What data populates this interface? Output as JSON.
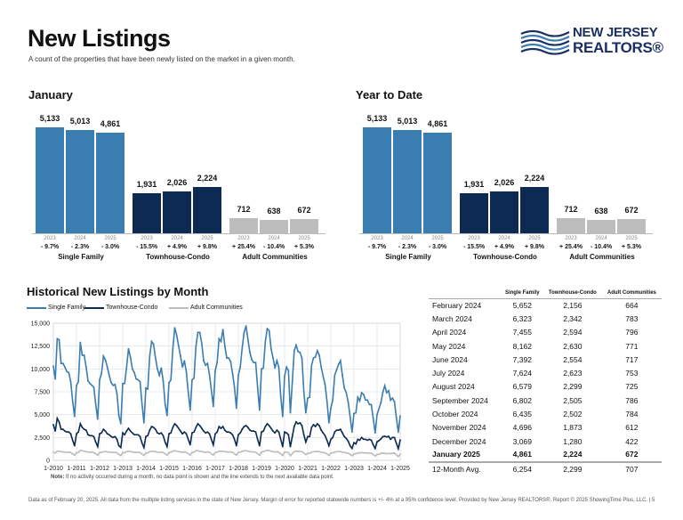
{
  "header": {
    "title": "New Listings",
    "subtitle": "A count of the properties that have been newly listed on the market in a given month.",
    "logo_line1": "NEW JERSEY",
    "logo_line2": "REALTORS®"
  },
  "colors": {
    "single_family": "#3a7db1",
    "townhouse_condo": "#0d2a52",
    "adult_communities": "#bdbdbd"
  },
  "chart_data": [
    {
      "type": "bar",
      "title": "January",
      "categories": [
        "Single Family",
        "Townhouse-Condo",
        "Adult Communities"
      ],
      "years": [
        "2023",
        "2024",
        "2025"
      ],
      "groups": [
        {
          "name": "Single Family",
          "values": [
            "5,133",
            "5,013",
            "4,861"
          ],
          "raw": [
            5133,
            5013,
            4861
          ],
          "changes": [
            "- 9.7%",
            "- 2.3%",
            "- 3.0%"
          ]
        },
        {
          "name": "Townhouse-Condo",
          "values": [
            "1,931",
            "2,026",
            "2,224"
          ],
          "raw": [
            1931,
            2026,
            2224
          ],
          "changes": [
            "- 15.5%",
            "+ 4.9%",
            "+ 9.8%"
          ]
        },
        {
          "name": "Adult Communities",
          "values": [
            "712",
            "638",
            "672"
          ],
          "raw": [
            712,
            638,
            672
          ],
          "changes": [
            "+ 25.4%",
            "- 10.4%",
            "+ 5.3%"
          ]
        }
      ]
    },
    {
      "type": "bar",
      "title": "Year to Date",
      "categories": [
        "Single Family",
        "Townhouse-Condo",
        "Adult Communities"
      ],
      "years": [
        "2023",
        "2024",
        "2025"
      ],
      "groups": [
        {
          "name": "Single Family",
          "values": [
            "5,133",
            "5,013",
            "4,861"
          ],
          "raw": [
            5133,
            5013,
            4861
          ],
          "changes": [
            "- 9.7%",
            "- 2.3%",
            "- 3.0%"
          ]
        },
        {
          "name": "Townhouse-Condo",
          "values": [
            "1,931",
            "2,026",
            "2,224"
          ],
          "raw": [
            1931,
            2026,
            2224
          ],
          "changes": [
            "- 15.5%",
            "+ 4.9%",
            "+ 9.8%"
          ]
        },
        {
          "name": "Adult Communities",
          "values": [
            "712",
            "638",
            "672"
          ],
          "raw": [
            712,
            638,
            672
          ],
          "changes": [
            "+ 25.4%",
            "- 10.4%",
            "+ 5.3%"
          ]
        }
      ]
    },
    {
      "type": "line",
      "title": "Historical New Listings by Month",
      "x_start": "1-2010",
      "x_end": "1-2025",
      "frequency": "monthly",
      "ylim": [
        0,
        15000
      ],
      "y_ticks": [
        "0",
        "2,500",
        "5,000",
        "7,500",
        "10,000",
        "12,500",
        "15,000"
      ],
      "x_ticks": [
        "1-2010",
        "1-2011",
        "1-2012",
        "1-2013",
        "1-2014",
        "1-2015",
        "1-2016",
        "1-2017",
        "1-2018",
        "1-2019",
        "1-2020",
        "1-2021",
        "1-2022",
        "1-2023",
        "1-2024",
        "1-2025"
      ],
      "grid": true,
      "legend": "top-left",
      "series": [
        {
          "name": "Single Family",
          "values": [
            10300,
            8900,
            13300,
            13200,
            10600,
            10600,
            10200,
            9700,
            9600,
            8600,
            6500,
            4800,
            8200,
            8600,
            12900,
            11500,
            11500,
            10200,
            8700,
            8400,
            8200,
            8000,
            6100,
            4500,
            8800,
            9500,
            11400,
            11000,
            10200,
            9300,
            8500,
            8200,
            8300,
            7300,
            4900,
            4000,
            8400,
            8400,
            10200,
            12200,
            11300,
            10000,
            9600,
            8900,
            8800,
            8600,
            6200,
            4100,
            7900,
            7800,
            11400,
            13000,
            12700,
            11200,
            10000,
            9300,
            10100,
            8700,
            6200,
            4900,
            8500,
            8800,
            12200,
            14500,
            13700,
            12500,
            11400,
            10200,
            10900,
            9700,
            7500,
            5500,
            8800,
            9000,
            12500,
            14000,
            14000,
            12800,
            10900,
            10400,
            10600,
            9400,
            7700,
            5900,
            9800,
            10700,
            13300,
            13000,
            14300,
            12500,
            11200,
            11200,
            10800,
            9500,
            8000,
            5700,
            9300,
            10200,
            12300,
            14000,
            14700,
            13200,
            11800,
            11000,
            10700,
            10700,
            8000,
            5500,
            10000,
            10100,
            13000,
            14400,
            14200,
            12200,
            11200,
            10100,
            10900,
            10200,
            7000,
            4800,
            9200,
            10200,
            9800,
            5200,
            8500,
            12000,
            12600,
            11900,
            11800,
            11200,
            7500,
            5200,
            6800,
            6900,
            10400,
            11200,
            11300,
            12000,
            11500,
            10200,
            9200,
            8300,
            6500,
            4100,
            5700,
            6600,
            9300,
            9900,
            10500,
            10900,
            9300,
            7900,
            7400,
            6400,
            4800,
            3100,
            5133,
            5200,
            6900,
            6500,
            7400,
            7200,
            6600,
            6600,
            6100,
            6100,
            4600,
            3000,
            5013,
            5652,
            6323,
            7455,
            8162,
            7392,
            7624,
            6579,
            6802,
            6435,
            4696,
            3069,
            4861
          ]
        },
        {
          "name": "Townhouse-Condo",
          "values": [
            3900,
            3200,
            4600,
            4200,
            3400,
            3400,
            3200,
            3100,
            3100,
            2900,
            2200,
            1600,
            2900,
            3100,
            4000,
            3600,
            3400,
            3300,
            2800,
            2700,
            2700,
            2600,
            2000,
            1500,
            2900,
            3000,
            3400,
            3200,
            2900,
            2800,
            2600,
            2500,
            2600,
            2300,
            1600,
            1400,
            3000,
            2800,
            3200,
            3500,
            3200,
            3000,
            2800,
            2800,
            2800,
            2600,
            1900,
            1400,
            2600,
            2700,
            3300,
            3700,
            3600,
            3400,
            3000,
            2900,
            3000,
            2700,
            2000,
            1500,
            2900,
            3000,
            3600,
            4000,
            3800,
            3500,
            3200,
            2900,
            3100,
            2900,
            2300,
            1700,
            3000,
            3100,
            3600,
            4000,
            3800,
            3500,
            3200,
            3000,
            3100,
            2900,
            2300,
            1700,
            2900,
            3100,
            3700,
            3500,
            3700,
            3300,
            3100,
            3100,
            3000,
            2800,
            2300,
            1600,
            2800,
            3000,
            3400,
            3700,
            3800,
            3600,
            3300,
            3200,
            3200,
            3100,
            2300,
            1600,
            3100,
            3200,
            3700,
            4000,
            3800,
            3500,
            3200,
            3000,
            3300,
            3100,
            2300,
            1500,
            3100,
            3000,
            2800,
            1500,
            2600,
            3700,
            4200,
            4000,
            4100,
            3800,
            2800,
            2000,
            2600,
            2600,
            3600,
            3900,
            3700,
            4000,
            3800,
            3300,
            3000,
            2700,
            2200,
            1600,
            2300,
            2500,
            3100,
            3300,
            3300,
            3400,
            3000,
            2600,
            2400,
            2100,
            1600,
            1300,
            1931,
            1800,
            2300,
            2200,
            2500,
            2300,
            2300,
            2200,
            2300,
            2200,
            1700,
            1300,
            2026,
            2156,
            2342,
            2594,
            2630,
            2554,
            2623,
            2299,
            2505,
            2502,
            1873,
            1280,
            2224
          ]
        },
        {
          "name": "Adult Communities",
          "values": [
            850,
            800,
            1000,
            1000,
            950,
            920,
            900,
            880,
            900,
            860,
            700,
            560,
            850,
            850,
            1100,
            1050,
            1000,
            950,
            900,
            880,
            900,
            850,
            700,
            560,
            850,
            880,
            950,
            950,
            920,
            900,
            880,
            860,
            880,
            820,
            650,
            520,
            850,
            820,
            950,
            1000,
            960,
            920,
            880,
            860,
            880,
            850,
            680,
            540,
            800,
            820,
            950,
            1000,
            980,
            940,
            900,
            880,
            900,
            860,
            700,
            560,
            850,
            880,
            1000,
            1050,
            1000,
            960,
            920,
            880,
            920,
            880,
            720,
            580,
            880,
            900,
            1050,
            1050,
            1000,
            960,
            920,
            880,
            920,
            880,
            720,
            580,
            850,
            900,
            1000,
            980,
            1000,
            950,
            920,
            900,
            920,
            880,
            720,
            560,
            850,
            900,
            980,
            1050,
            1050,
            1000,
            950,
            920,
            920,
            900,
            720,
            560,
            900,
            950,
            1050,
            1100,
            1080,
            1000,
            950,
            900,
            950,
            900,
            700,
            520,
            900,
            900,
            850,
            500,
            750,
            950,
            1000,
            980,
            980,
            950,
            800,
            620,
            760,
            780,
            900,
            950,
            950,
            980,
            950,
            880,
            860,
            820,
            700,
            540,
            800,
            820,
            900,
            950,
            950,
            960,
            900,
            850,
            820,
            780,
            650,
            500,
            712,
            720,
            820,
            800,
            850,
            820,
            800,
            800,
            800,
            780,
            620,
            480,
            638,
            664,
            783,
            796,
            771,
            717,
            753,
            725,
            786,
            784,
            612,
            422,
            672
          ]
        }
      ]
    }
  ],
  "table": {
    "headers": [
      "Single Family",
      "Townhouse-Condo",
      "Adult Communities"
    ],
    "rows": [
      [
        "February 2024",
        "5,652",
        "2,156",
        "664"
      ],
      [
        "March 2024",
        "6,323",
        "2,342",
        "783"
      ],
      [
        "April 2024",
        "7,455",
        "2,594",
        "796"
      ],
      [
        "May 2024",
        "8,162",
        "2,630",
        "771"
      ],
      [
        "June 2024",
        "7,392",
        "2,554",
        "717"
      ],
      [
        "July 2024",
        "7,624",
        "2,623",
        "753"
      ],
      [
        "August 2024",
        "6,579",
        "2,299",
        "725"
      ],
      [
        "September 2024",
        "6,802",
        "2,505",
        "786"
      ],
      [
        "October 2024",
        "6,435",
        "2,502",
        "784"
      ],
      [
        "November 2024",
        "4,696",
        "1,873",
        "612"
      ],
      [
        "December 2024",
        "3,069",
        "1,280",
        "422"
      ],
      [
        "January 2025",
        "4,861",
        "2,224",
        "672"
      ]
    ],
    "avg": [
      "12-Month Avg.",
      "6,254",
      "2,299",
      "707"
    ]
  },
  "note_label": "Note:",
  "note": " If no activity occurred during a month, no data point is shown and the line extends to the next available data point.",
  "footer": "Data as of February 20, 2025. All data from the multiple listing services in the state of New Jersey. Margin of error for reported statewide numbers is +/- 4% at a 95% confidence level. Provided by New Jersey REALTORS®. Report © 2025 ShowingTime Plus, LLC. | 5"
}
